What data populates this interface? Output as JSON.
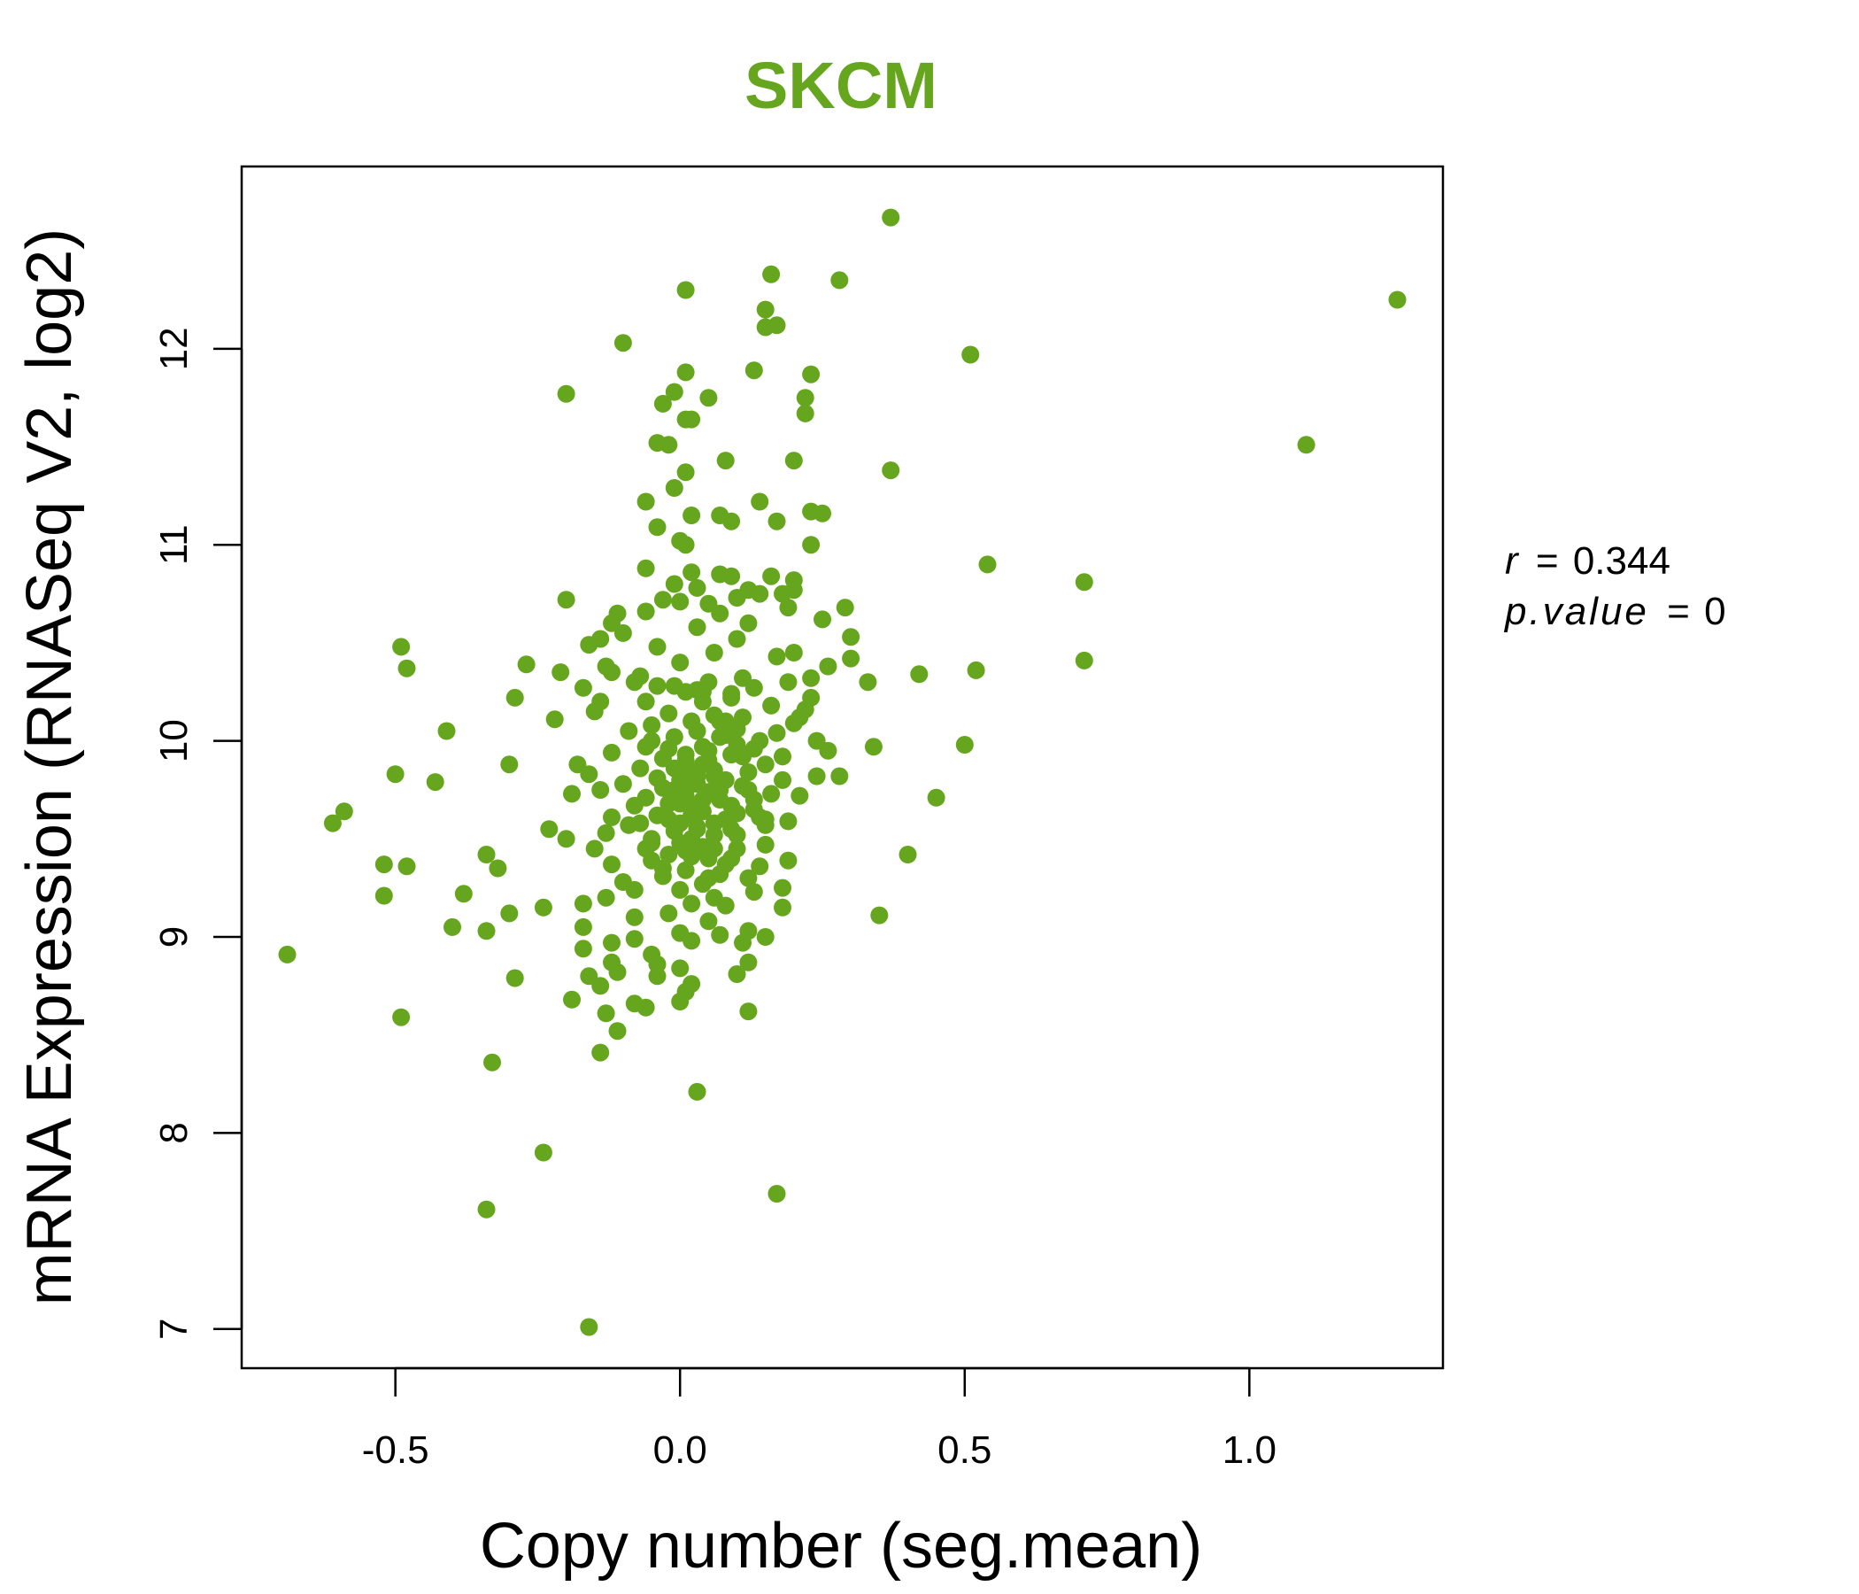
{
  "chart_data": {
    "type": "scatter",
    "title": "SKCM",
    "xlabel": "Copy number (seg.mean)",
    "ylabel": "mRNA Expression (RNASeq V2, log2)",
    "xlim": [
      -0.77,
      1.34
    ],
    "ylim": [
      6.8,
      12.93
    ],
    "x_ticks": [
      -0.5,
      0.0,
      0.5,
      1.0
    ],
    "x_tick_labels": [
      "-0.5",
      "0.0",
      "0.5",
      "1.0"
    ],
    "y_ticks": [
      7,
      8,
      9,
      10,
      11,
      12
    ],
    "y_tick_labels": [
      "7",
      "8",
      "9",
      "10",
      "11",
      "12"
    ],
    "grid": false,
    "annotations": {
      "r_label": "r",
      "r_value": "0.344",
      "p_label": "p.value",
      "p_value": "0"
    },
    "series": [
      {
        "color": "#66A61E",
        "points": [
          [
            0.37,
            12.67
          ],
          [
            1.26,
            12.25
          ],
          [
            0.16,
            12.38
          ],
          [
            0.28,
            12.35
          ],
          [
            0.01,
            12.3
          ],
          [
            0.15,
            12.2
          ],
          [
            0.17,
            12.12
          ],
          [
            0.15,
            12.11
          ],
          [
            -0.1,
            12.03
          ],
          [
            0.51,
            11.97
          ],
          [
            0.01,
            11.88
          ],
          [
            0.13,
            11.89
          ],
          [
            0.23,
            11.87
          ],
          [
            -0.2,
            11.77
          ],
          [
            -0.01,
            11.78
          ],
          [
            0.05,
            11.75
          ],
          [
            0.22,
            11.75
          ],
          [
            -0.03,
            11.72
          ],
          [
            0.01,
            11.64
          ],
          [
            0.02,
            11.64
          ],
          [
            0.22,
            11.67
          ],
          [
            1.1,
            11.51
          ],
          [
            -0.04,
            11.52
          ],
          [
            -0.02,
            11.51
          ],
          [
            0.08,
            11.43
          ],
          [
            0.2,
            11.43
          ],
          [
            0.37,
            11.38
          ],
          [
            0.01,
            11.37
          ],
          [
            -0.01,
            11.29
          ],
          [
            -0.06,
            11.22
          ],
          [
            0.14,
            11.22
          ],
          [
            0.23,
            11.17
          ],
          [
            0.25,
            11.16
          ],
          [
            0.02,
            11.15
          ],
          [
            0.07,
            11.15
          ],
          [
            0.09,
            11.12
          ],
          [
            0.17,
            11.12
          ],
          [
            -0.04,
            11.09
          ],
          [
            0.0,
            11.02
          ],
          [
            0.01,
            11.0
          ],
          [
            0.23,
            11.0
          ],
          [
            0.54,
            10.9
          ],
          [
            -0.06,
            10.88
          ],
          [
            0.02,
            10.86
          ],
          [
            0.07,
            10.85
          ],
          [
            0.09,
            10.84
          ],
          [
            0.16,
            10.84
          ],
          [
            0.2,
            10.82
          ],
          [
            0.71,
            10.81
          ],
          [
            -0.01,
            10.8
          ],
          [
            0.03,
            10.78
          ],
          [
            0.12,
            10.77
          ],
          [
            0.2,
            10.77
          ],
          [
            0.1,
            10.73
          ],
          [
            0.14,
            10.75
          ],
          [
            0.18,
            10.75
          ],
          [
            -0.2,
            10.72
          ],
          [
            -0.03,
            10.72
          ],
          [
            0.0,
            10.71
          ],
          [
            0.05,
            10.7
          ],
          [
            0.19,
            10.68
          ],
          [
            0.29,
            10.68
          ],
          [
            -0.11,
            10.65
          ],
          [
            -0.06,
            10.66
          ],
          [
            0.07,
            10.65
          ],
          [
            0.25,
            10.62
          ],
          [
            -0.12,
            10.6
          ],
          [
            0.12,
            10.6
          ],
          [
            0.03,
            10.58
          ],
          [
            -0.1,
            10.55
          ],
          [
            -0.14,
            10.52
          ],
          [
            0.1,
            10.52
          ],
          [
            0.3,
            10.53
          ],
          [
            -0.49,
            10.48
          ],
          [
            -0.16,
            10.49
          ],
          [
            -0.04,
            10.48
          ],
          [
            0.2,
            10.45
          ],
          [
            0.06,
            10.45
          ],
          [
            0.17,
            10.43
          ],
          [
            -0.27,
            10.39
          ],
          [
            0.3,
            10.42
          ],
          [
            0.71,
            10.41
          ],
          [
            -0.48,
            10.37
          ],
          [
            -0.13,
            10.38
          ],
          [
            0.0,
            10.4
          ],
          [
            0.26,
            10.38
          ],
          [
            0.52,
            10.36
          ],
          [
            -0.21,
            10.35
          ],
          [
            -0.12,
            10.35
          ],
          [
            0.42,
            10.34
          ],
          [
            -0.07,
            10.33
          ],
          [
            0.11,
            10.32
          ],
          [
            0.23,
            10.32
          ],
          [
            0.33,
            10.3
          ],
          [
            -0.08,
            10.3
          ],
          [
            0.05,
            10.3
          ],
          [
            0.19,
            10.3
          ],
          [
            -0.04,
            10.28
          ],
          [
            0.03,
            10.26
          ],
          [
            0.13,
            10.27
          ],
          [
            -0.17,
            10.27
          ],
          [
            0.01,
            10.25
          ],
          [
            0.09,
            10.24
          ],
          [
            -0.29,
            10.22
          ],
          [
            0.23,
            10.22
          ],
          [
            -0.14,
            10.2
          ],
          [
            -0.06,
            10.2
          ],
          [
            0.04,
            10.2
          ],
          [
            0.16,
            10.18
          ],
          [
            0.22,
            10.16
          ],
          [
            -0.15,
            10.15
          ],
          [
            -0.02,
            10.14
          ],
          [
            0.06,
            10.13
          ],
          [
            0.21,
            10.12
          ],
          [
            -0.22,
            10.11
          ],
          [
            0.02,
            10.1
          ],
          [
            0.08,
            10.1
          ],
          [
            0.2,
            10.09
          ],
          [
            -0.05,
            10.08
          ],
          [
            -0.41,
            10.05
          ],
          [
            0.1,
            10.06
          ],
          [
            0.17,
            10.04
          ],
          [
            -0.01,
            10.02
          ],
          [
            0.07,
            10.02
          ],
          [
            0.24,
            10.0
          ],
          [
            0.5,
            9.98
          ],
          [
            -0.06,
            9.97
          ],
          [
            0.04,
            9.97
          ],
          [
            0.13,
            9.96
          ],
          [
            0.34,
            9.97
          ],
          [
            0.26,
            9.95
          ],
          [
            -0.12,
            9.94
          ],
          [
            0.01,
            9.93
          ],
          [
            0.09,
            9.93
          ],
          [
            0.18,
            9.92
          ],
          [
            -0.03,
            9.91
          ],
          [
            0.05,
            9.9
          ],
          [
            -0.3,
            9.88
          ],
          [
            -0.18,
            9.88
          ],
          [
            0.15,
            9.88
          ],
          [
            -0.07,
            9.86
          ],
          [
            0.0,
            9.85
          ],
          [
            0.06,
            9.85
          ],
          [
            0.12,
            9.84
          ],
          [
            -0.5,
            9.83
          ],
          [
            -0.16,
            9.83
          ],
          [
            0.03,
            9.82
          ],
          [
            0.24,
            9.82
          ],
          [
            0.28,
            9.82
          ],
          [
            -0.04,
            9.81
          ],
          [
            0.08,
            9.8
          ],
          [
            0.18,
            9.8
          ],
          [
            -0.43,
            9.79
          ],
          [
            -0.1,
            9.78
          ],
          [
            0.02,
            9.78
          ],
          [
            0.11,
            9.77
          ],
          [
            -0.14,
            9.75
          ],
          [
            -0.01,
            9.75
          ],
          [
            0.07,
            9.75
          ],
          [
            -0.19,
            9.73
          ],
          [
            0.16,
            9.73
          ],
          [
            0.21,
            9.72
          ],
          [
            0.45,
            9.71
          ],
          [
            -0.06,
            9.71
          ],
          [
            0.04,
            9.7
          ],
          [
            0.13,
            9.7
          ],
          [
            0.0,
            9.68
          ],
          [
            -0.08,
            9.67
          ],
          [
            0.09,
            9.67
          ],
          [
            -0.59,
            9.64
          ],
          [
            0.1,
            9.63
          ],
          [
            0.02,
            9.62
          ],
          [
            -0.12,
            9.61
          ],
          [
            0.14,
            9.61
          ],
          [
            -0.02,
            9.6
          ],
          [
            0.19,
            9.59
          ],
          [
            -0.61,
            9.58
          ],
          [
            0.06,
            9.58
          ],
          [
            -0.09,
            9.57
          ],
          [
            0.15,
            9.57
          ],
          [
            -0.23,
            9.55
          ],
          [
            0.03,
            9.55
          ],
          [
            -0.13,
            9.53
          ],
          [
            0.1,
            9.52
          ],
          [
            -0.2,
            9.5
          ],
          [
            -0.05,
            9.5
          ],
          [
            0.0,
            9.48
          ],
          [
            0.15,
            9.47
          ],
          [
            -0.15,
            9.45
          ],
          [
            0.06,
            9.45
          ],
          [
            -0.34,
            9.42
          ],
          [
            0.02,
            9.41
          ],
          [
            0.09,
            9.4
          ],
          [
            0.4,
            9.42
          ],
          [
            -0.05,
            9.39
          ],
          [
            0.19,
            9.39
          ],
          [
            -0.52,
            9.37
          ],
          [
            -0.12,
            9.37
          ],
          [
            0.14,
            9.36
          ],
          [
            -0.48,
            9.36
          ],
          [
            -0.32,
            9.35
          ],
          [
            0.01,
            9.34
          ],
          [
            0.07,
            9.32
          ],
          [
            -0.03,
            9.31
          ],
          [
            0.12,
            9.3
          ],
          [
            -0.1,
            9.28
          ],
          [
            0.04,
            9.27
          ],
          [
            0.18,
            9.25
          ],
          [
            -0.08,
            9.24
          ],
          [
            0.0,
            9.24
          ],
          [
            0.13,
            9.23
          ],
          [
            -0.38,
            9.22
          ],
          [
            -0.52,
            9.21
          ],
          [
            -0.13,
            9.2
          ],
          [
            0.06,
            9.2
          ],
          [
            -0.17,
            9.17
          ],
          [
            0.02,
            9.17
          ],
          [
            0.08,
            9.16
          ],
          [
            0.18,
            9.15
          ],
          [
            -0.24,
            9.15
          ],
          [
            -0.3,
            9.12
          ],
          [
            -0.02,
            9.12
          ],
          [
            0.35,
            9.11
          ],
          [
            -0.08,
            9.1
          ],
          [
            0.05,
            9.08
          ],
          [
            -0.17,
            9.05
          ],
          [
            -0.4,
            9.05
          ],
          [
            0.12,
            9.03
          ],
          [
            -0.34,
            9.03
          ],
          [
            0.0,
            9.02
          ],
          [
            0.07,
            9.01
          ],
          [
            0.15,
            9.0
          ],
          [
            -0.08,
            8.99
          ],
          [
            0.02,
            8.98
          ],
          [
            -0.12,
            8.97
          ],
          [
            0.11,
            8.97
          ],
          [
            -0.17,
            8.94
          ],
          [
            -0.05,
            8.91
          ],
          [
            -0.69,
            8.91
          ],
          [
            -0.12,
            8.87
          ],
          [
            0.12,
            8.87
          ],
          [
            -0.04,
            8.86
          ],
          [
            0.0,
            8.84
          ],
          [
            -0.11,
            8.82
          ],
          [
            0.1,
            8.81
          ],
          [
            -0.16,
            8.8
          ],
          [
            -0.04,
            8.8
          ],
          [
            -0.29,
            8.79
          ],
          [
            0.02,
            8.76
          ],
          [
            -0.14,
            8.75
          ],
          [
            0.01,
            8.72
          ],
          [
            -0.19,
            8.68
          ],
          [
            0.0,
            8.67
          ],
          [
            -0.08,
            8.66
          ],
          [
            -0.06,
            8.64
          ],
          [
            0.12,
            8.62
          ],
          [
            -0.13,
            8.61
          ],
          [
            -0.49,
            8.59
          ],
          [
            -0.11,
            8.52
          ],
          [
            -0.14,
            8.41
          ],
          [
            -0.33,
            8.36
          ],
          [
            0.03,
            8.21
          ],
          [
            -0.24,
            7.9
          ],
          [
            0.17,
            7.69
          ],
          [
            -0.34,
            7.61
          ],
          [
            -0.16,
            7.01
          ],
          [
            0.03,
            10.05
          ],
          [
            0.08,
            10.03
          ],
          [
            -0.02,
            9.96
          ],
          [
            0.05,
            9.95
          ],
          [
            0.01,
            9.9
          ],
          [
            0.04,
            9.88
          ],
          [
            -0.01,
            9.86
          ],
          [
            0.02,
            9.84
          ],
          [
            0.06,
            9.82
          ],
          [
            0.0,
            9.8
          ],
          [
            0.03,
            9.78
          ],
          [
            -0.03,
            9.76
          ],
          [
            0.05,
            9.74
          ],
          [
            0.01,
            9.72
          ],
          [
            0.07,
            9.7
          ],
          [
            -0.02,
            9.68
          ],
          [
            0.02,
            9.66
          ],
          [
            0.04,
            9.64
          ],
          [
            -0.04,
            9.62
          ],
          [
            0.08,
            9.6
          ],
          [
            0.0,
            9.58
          ],
          [
            0.03,
            9.56
          ],
          [
            -0.01,
            9.54
          ],
          [
            0.06,
            9.52
          ],
          [
            0.02,
            9.5
          ],
          [
            -0.05,
            9.48
          ],
          [
            0.04,
            9.46
          ],
          [
            0.01,
            9.44
          ],
          [
            -0.02,
            9.42
          ],
          [
            0.05,
            9.4
          ],
          [
            0.07,
            10.1
          ],
          [
            0.1,
            9.98
          ],
          [
            -0.05,
            10.0
          ],
          [
            0.11,
            9.92
          ],
          [
            0.12,
            9.75
          ],
          [
            -0.07,
            9.58
          ],
          [
            0.09,
            9.55
          ],
          [
            -0.03,
            9.35
          ],
          [
            0.05,
            9.3
          ],
          [
            0.08,
            9.37
          ],
          [
            0.04,
            10.25
          ],
          [
            0.09,
            10.22
          ],
          [
            -0.01,
            10.28
          ],
          [
            0.11,
            10.12
          ],
          [
            0.14,
            10.0
          ],
          [
            -0.09,
            10.05
          ],
          [
            0.13,
            9.65
          ],
          [
            -0.06,
            9.45
          ],
          [
            0.15,
            9.6
          ],
          [
            0.1,
            9.45
          ]
        ]
      }
    ]
  }
}
